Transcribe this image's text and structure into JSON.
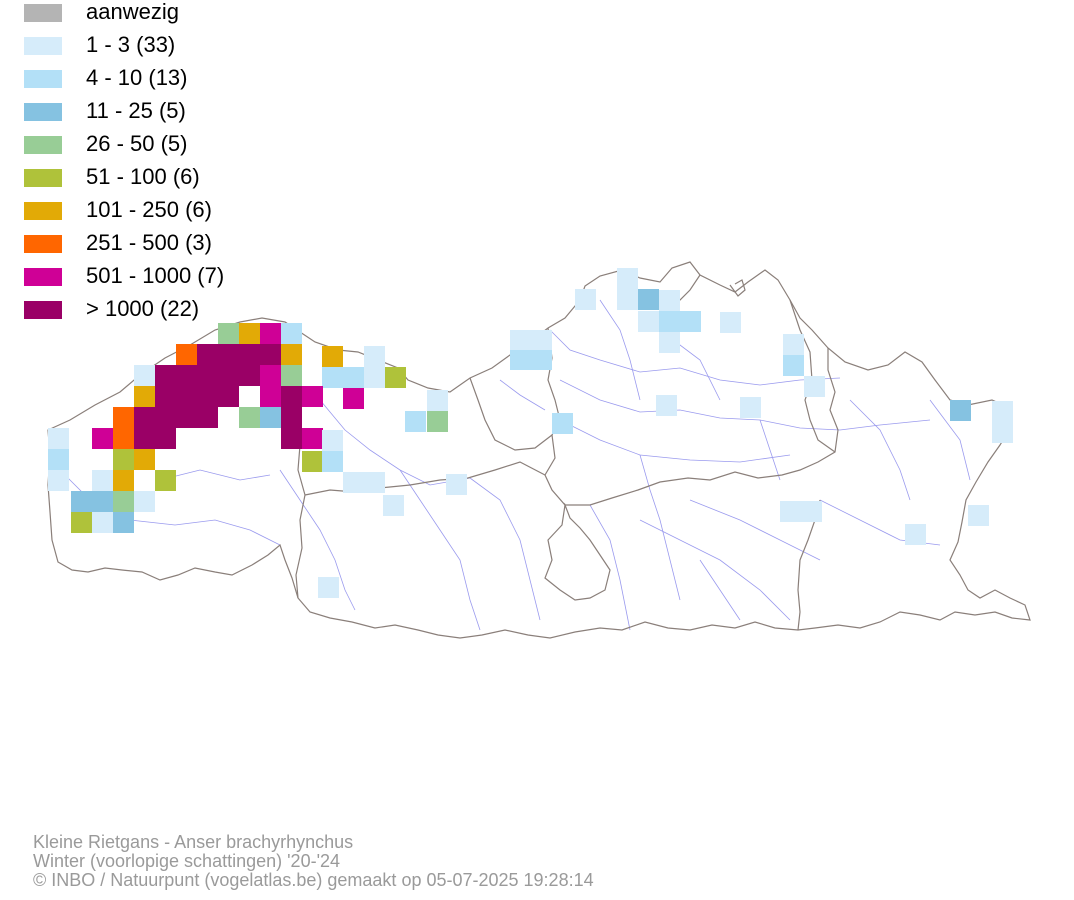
{
  "legend": {
    "items": [
      {
        "label": "aanwezig",
        "color": "#b4b4b4"
      },
      {
        "label": "1 - 3 (33)",
        "color": "#d6ecfa"
      },
      {
        "label": "4 - 10 (13)",
        "color": "#b3e0f7"
      },
      {
        "label": "11 - 25 (5)",
        "color": "#85c2e1"
      },
      {
        "label": "26 - 50 (5)",
        "color": "#98cd96"
      },
      {
        "label": "51 - 100 (6)",
        "color": "#afc23a"
      },
      {
        "label": "101 - 250 (6)",
        "color": "#e2aa06"
      },
      {
        "label": "251 - 500 (3)",
        "color": "#ff6600"
      },
      {
        "label": "501 - 1000 (7)",
        "color": "#cf0096"
      },
      {
        "label": "> 1000 (22)",
        "color": "#9a0066"
      }
    ]
  },
  "map": {
    "outline_color": "#8a7f7a",
    "river_color": "#9a9aee"
  },
  "footer": {
    "species": "Kleine Rietgans - Anser brachyrhynchus",
    "period": "Winter (voorlopige schattingen) '20-'24",
    "credit": "© INBO / Natuurpunt (vogelatlas.be) gemaakt op 05-07-2025 19:28:14"
  }
}
